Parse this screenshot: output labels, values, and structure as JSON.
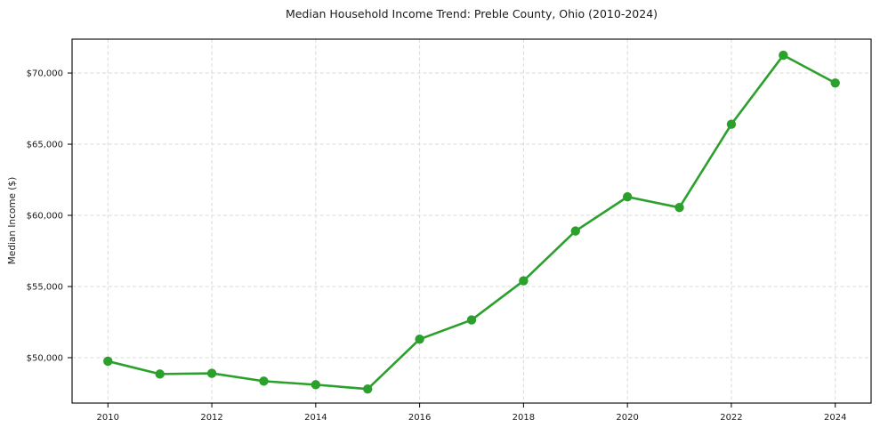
{
  "chart_data": {
    "type": "line",
    "title": "Median Household Income Trend: Preble County, Ohio (2010-2024)",
    "xlabel": "",
    "ylabel": "Median Income ($)",
    "x": [
      2010,
      2011,
      2012,
      2013,
      2014,
      2015,
      2016,
      2017,
      2018,
      2019,
      2020,
      2021,
      2022,
      2023,
      2024
    ],
    "series": [
      {
        "name": "Median Household Income",
        "values": [
          49750,
          48850,
          48900,
          48350,
          48100,
          47800,
          51300,
          52650,
          55400,
          58900,
          61300,
          60550,
          66400,
          71250,
          69300
        ]
      }
    ],
    "x_ticks": {
      "values": [
        2010,
        2012,
        2014,
        2016,
        2018,
        2020,
        2022,
        2024
      ],
      "labels": [
        "2010",
        "2012",
        "2014",
        "2016",
        "2018",
        "2020",
        "2022",
        "2024"
      ]
    },
    "y_ticks": {
      "values": [
        50000,
        55000,
        60000,
        65000,
        70000
      ],
      "labels": [
        "$50,000",
        "$55,000",
        "$60,000",
        "$65,000",
        "$70,000"
      ]
    },
    "xlim": [
      2009.31,
      2024.69
    ],
    "ylim": [
      46810,
      72380
    ],
    "grid": true,
    "legend": "none",
    "style": {
      "line_color": "#2ca02c",
      "marker": "circle",
      "marker_radius": 5.2,
      "line_width": 2.6,
      "grid_color": "#d9d9d9",
      "axis_color": "#000000",
      "text_color": "#1a1a1a",
      "background": "#ffffff",
      "tick_font_size": 10,
      "tick_length": 5
    }
  }
}
